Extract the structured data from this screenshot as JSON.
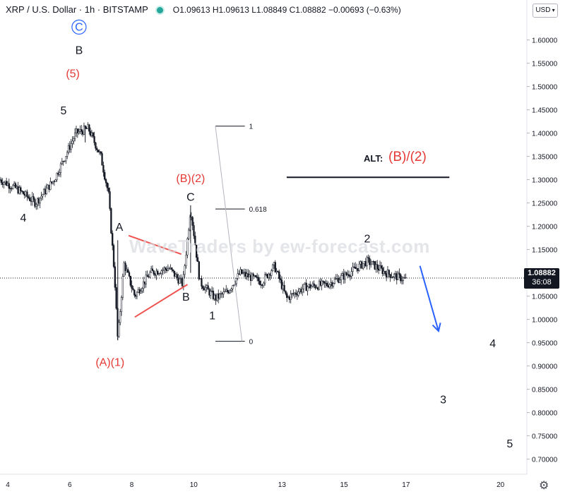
{
  "header": {
    "symbol": "XRP / U.S. Dollar · 1h · BITSTAMP",
    "ohlc": "O1.09613 H1.09613 L1.08849 C1.08882 −0.00693 (−0.63%)",
    "status_color": "#26a69a"
  },
  "currency_selector": {
    "label": "USD",
    "icon": "chevron-down-icon"
  },
  "settings_icon": "gear-icon",
  "watermark": "WaveTraders by ew-forecast.com",
  "alt_annotation": {
    "label": "ALT:",
    "value": "(B)/(2)"
  },
  "price_tag": {
    "price": "1.08882",
    "countdown": "36:08"
  },
  "chart_data": {
    "type": "candlestick",
    "symbol": "XRP / U.S. Dollar",
    "interval": "1h",
    "exchange": "BITSTAMP",
    "y_axis": {
      "side": "right",
      "range": [
        0.66,
        1.66
      ],
      "ticks": [
        "1.60000",
        "1.55000",
        "1.50000",
        "1.45000",
        "1.40000",
        "1.35000",
        "1.30000",
        "1.25000",
        "1.20000",
        "1.15000",
        "1.10000",
        "1.05000",
        "1.00000",
        "0.95000",
        "0.90000",
        "0.85000",
        "0.80000",
        "0.75000",
        "0.70000"
      ]
    },
    "x_axis": {
      "ticks": [
        {
          "label": "4",
          "day": 4
        },
        {
          "label": "6",
          "day": 6
        },
        {
          "label": "8",
          "day": 8
        },
        {
          "label": "10",
          "day": 10
        },
        {
          "label": "13",
          "day": 12.85
        },
        {
          "label": "15",
          "day": 14.85
        },
        {
          "label": "17",
          "day": 16.85
        },
        {
          "label": "20",
          "day": 19.9
        }
      ],
      "range": [
        3.75,
        20.75
      ]
    },
    "current_price": 1.08882,
    "price_path": [
      {
        "day": 3.75,
        "price": 1.3
      },
      {
        "day": 4.3,
        "price": 1.28
      },
      {
        "day": 4.9,
        "price": 1.25
      },
      {
        "day": 5.5,
        "price": 1.3
      },
      {
        "day": 6.2,
        "price": 1.4
      },
      {
        "day": 6.6,
        "price": 1.41
      },
      {
        "day": 7.0,
        "price": 1.35
      },
      {
        "day": 7.25,
        "price": 1.27
      },
      {
        "day": 7.45,
        "price": 1.09
      },
      {
        "day": 7.55,
        "price": 0.955
      },
      {
        "day": 7.75,
        "price": 1.12
      },
      {
        "day": 8.1,
        "price": 1.05
      },
      {
        "day": 8.6,
        "price": 1.1
      },
      {
        "day": 9.2,
        "price": 1.11
      },
      {
        "day": 9.65,
        "price": 1.075
      },
      {
        "day": 9.9,
        "price": 1.24
      },
      {
        "day": 10.2,
        "price": 1.08
      },
      {
        "day": 10.7,
        "price": 1.045
      },
      {
        "day": 11.1,
        "price": 1.06
      },
      {
        "day": 11.5,
        "price": 1.1
      },
      {
        "day": 12.2,
        "price": 1.08
      },
      {
        "day": 12.6,
        "price": 1.115
      },
      {
        "day": 13.0,
        "price": 1.045
      },
      {
        "day": 13.6,
        "price": 1.07
      },
      {
        "day": 14.3,
        "price": 1.075
      },
      {
        "day": 14.9,
        "price": 1.095
      },
      {
        "day": 15.6,
        "price": 1.125
      },
      {
        "day": 16.2,
        "price": 1.1
      },
      {
        "day": 16.85,
        "price": 1.085
      }
    ],
    "wave_labels": [
      {
        "text": "C",
        "day": 6.3,
        "price": 1.62,
        "color": "#2962ff",
        "circled": true
      },
      {
        "text": "B",
        "day": 6.3,
        "price": 1.57,
        "color": "#131722"
      },
      {
        "text": "(5)",
        "day": 6.1,
        "price": 1.52,
        "color": "#e53935"
      },
      {
        "text": "5",
        "day": 5.8,
        "price": 1.44,
        "color": "#131722"
      },
      {
        "text": "4",
        "day": 4.5,
        "price": 1.21,
        "color": "#131722"
      },
      {
        "text": "A",
        "day": 7.6,
        "price": 1.19,
        "color": "#131722"
      },
      {
        "text": "(A)(1)",
        "day": 7.3,
        "price": 0.9,
        "color": "#e53935"
      },
      {
        "text": "(B)(2)",
        "day": 9.9,
        "price": 1.295,
        "color": "#e53935"
      },
      {
        "text": "C",
        "day": 9.9,
        "price": 1.255,
        "color": "#131722"
      },
      {
        "text": "B",
        "day": 9.75,
        "price": 1.04,
        "color": "#131722"
      },
      {
        "text": "1",
        "day": 10.6,
        "price": 1.0,
        "color": "#131722"
      },
      {
        "text": "2",
        "day": 15.6,
        "price": 1.165,
        "color": "#131722"
      },
      {
        "text": "4",
        "day": 19.65,
        "price": 0.94,
        "color": "#131722"
      },
      {
        "text": "3",
        "day": 18.05,
        "price": 0.82,
        "color": "#131722"
      },
      {
        "text": "5",
        "day": 20.2,
        "price": 0.725,
        "color": "#131722"
      }
    ],
    "fib_levels": [
      {
        "label": "1",
        "price": 1.415
      },
      {
        "label": "0.618",
        "price": 1.237
      },
      {
        "label": "0",
        "price": 0.953
      }
    ],
    "fib_x_range": [
      10.7,
      11.65
    ],
    "triangle_lines": [
      {
        "from": {
          "day": 7.9,
          "price": 1.18
        },
        "to": {
          "day": 9.6,
          "price": 1.14
        }
      },
      {
        "from": {
          "day": 8.1,
          "price": 1.005
        },
        "to": {
          "day": 9.8,
          "price": 1.075
        }
      }
    ],
    "forecast_arrow": {
      "from": {
        "day": 17.3,
        "price": 1.115
      },
      "to": {
        "day": 17.9,
        "price": 0.975
      },
      "color": "#2962ff"
    },
    "alt_line": {
      "from_day": 13.0,
      "to_day": 18.25,
      "price": 1.305
    }
  }
}
